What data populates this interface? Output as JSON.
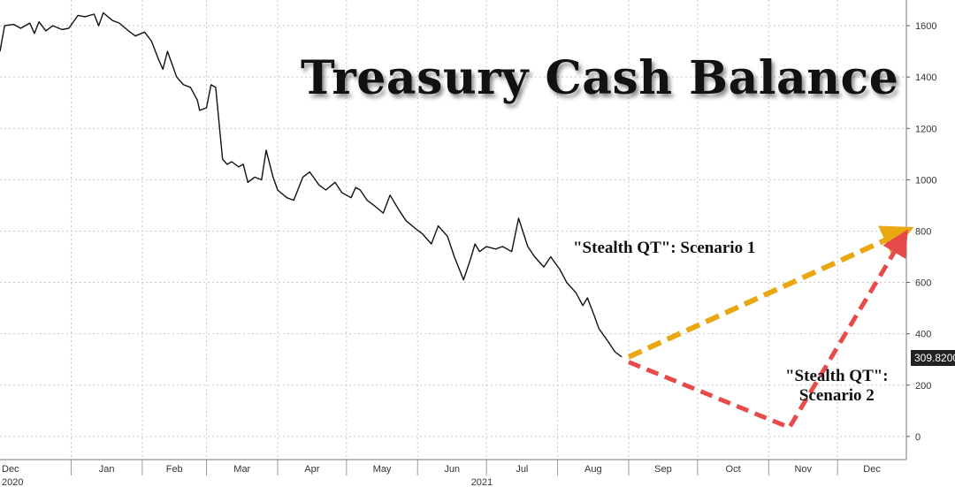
{
  "chart_data": {
    "type": "line",
    "title": "Treasury Cash Balance",
    "x_tick_labels": [
      "Dec",
      "Jan",
      "Feb",
      "Mar",
      "Apr",
      "May",
      "Jun",
      "Jul",
      "Aug",
      "Sep",
      "Oct",
      "Nov",
      "Dec"
    ],
    "year_labels": [
      "2020",
      "2021"
    ],
    "y_ticks": [
      0,
      200,
      400,
      600,
      800,
      1000,
      1200,
      1400,
      1600
    ],
    "ylim": [
      -90,
      1700
    ],
    "xlim": [
      "2020-12-01",
      "2021-12-31"
    ],
    "grid": true,
    "last_value_label": "309.8200",
    "series": [
      {
        "values": [
          [
            "2020-12-01",
            1500
          ],
          [
            "2020-12-03",
            1600
          ],
          [
            "2020-12-07",
            1605
          ],
          [
            "2020-12-10",
            1590
          ],
          [
            "2020-12-14",
            1610
          ],
          [
            "2020-12-16",
            1570
          ],
          [
            "2020-12-18",
            1615
          ],
          [
            "2020-12-21",
            1580
          ],
          [
            "2020-12-24",
            1600
          ],
          [
            "2020-12-28",
            1585
          ],
          [
            "2020-12-31",
            1590
          ],
          [
            "2021-01-04",
            1640
          ],
          [
            "2021-01-07",
            1635
          ],
          [
            "2021-01-11",
            1645
          ],
          [
            "2021-01-13",
            1600
          ],
          [
            "2021-01-15",
            1650
          ],
          [
            "2021-01-19",
            1620
          ],
          [
            "2021-01-22",
            1610
          ],
          [
            "2021-01-26",
            1580
          ],
          [
            "2021-01-29",
            1560
          ],
          [
            "2021-02-02",
            1575
          ],
          [
            "2021-02-05",
            1540
          ],
          [
            "2021-02-08",
            1470
          ],
          [
            "2021-02-10",
            1430
          ],
          [
            "2021-02-12",
            1500
          ],
          [
            "2021-02-16",
            1400
          ],
          [
            "2021-02-19",
            1370
          ],
          [
            "2021-02-22",
            1360
          ],
          [
            "2021-02-25",
            1310
          ],
          [
            "2021-02-26",
            1270
          ],
          [
            "2021-03-01",
            1280
          ],
          [
            "2021-03-03",
            1370
          ],
          [
            "2021-03-05",
            1360
          ],
          [
            "2021-03-08",
            1080
          ],
          [
            "2021-03-10",
            1060
          ],
          [
            "2021-03-12",
            1070
          ],
          [
            "2021-03-15",
            1050
          ],
          [
            "2021-03-17",
            1060
          ],
          [
            "2021-03-19",
            990
          ],
          [
            "2021-03-22",
            1010
          ],
          [
            "2021-03-25",
            1000
          ],
          [
            "2021-03-27",
            1115
          ],
          [
            "2021-03-30",
            1010
          ],
          [
            "2021-04-01",
            960
          ],
          [
            "2021-04-05",
            930
          ],
          [
            "2021-04-08",
            920
          ],
          [
            "2021-04-12",
            1010
          ],
          [
            "2021-04-15",
            1030
          ],
          [
            "2021-04-19",
            980
          ],
          [
            "2021-04-22",
            960
          ],
          [
            "2021-04-26",
            990
          ],
          [
            "2021-04-29",
            950
          ],
          [
            "2021-05-03",
            930
          ],
          [
            "2021-05-05",
            970
          ],
          [
            "2021-05-07",
            960
          ],
          [
            "2021-05-10",
            920
          ],
          [
            "2021-05-13",
            900
          ],
          [
            "2021-05-17",
            870
          ],
          [
            "2021-05-20",
            940
          ],
          [
            "2021-05-24",
            880
          ],
          [
            "2021-05-27",
            840
          ],
          [
            "2021-05-31",
            810
          ],
          [
            "2021-06-03",
            790
          ],
          [
            "2021-06-07",
            750
          ],
          [
            "2021-06-10",
            820
          ],
          [
            "2021-06-14",
            780
          ],
          [
            "2021-06-17",
            700
          ],
          [
            "2021-06-21",
            610
          ],
          [
            "2021-06-24",
            690
          ],
          [
            "2021-06-26",
            750
          ],
          [
            "2021-06-28",
            720
          ],
          [
            "2021-07-01",
            740
          ],
          [
            "2021-07-05",
            730
          ],
          [
            "2021-07-08",
            740
          ],
          [
            "2021-07-12",
            720
          ],
          [
            "2021-07-15",
            850
          ],
          [
            "2021-07-19",
            740
          ],
          [
            "2021-07-22",
            700
          ],
          [
            "2021-07-26",
            660
          ],
          [
            "2021-07-29",
            700
          ],
          [
            "2021-08-02",
            650
          ],
          [
            "2021-08-05",
            600
          ],
          [
            "2021-08-09",
            560
          ],
          [
            "2021-08-12",
            510
          ],
          [
            "2021-08-14",
            540
          ],
          [
            "2021-08-17",
            470
          ],
          [
            "2021-08-19",
            420
          ],
          [
            "2021-08-23",
            370
          ],
          [
            "2021-08-26",
            330
          ],
          [
            "2021-08-29",
            310
          ]
        ]
      }
    ],
    "annotations": [
      {
        "text": "\"Stealth QT\": Scenario 1",
        "arrow_color": "#e9a712",
        "from": [
          "2021-09-01",
          310
        ],
        "to": [
          "2021-12-31",
          800
        ]
      },
      {
        "text_line_1": "\"Stealth QT\":",
        "text_line_2": "Scenario 2",
        "arrow_color": "#e84a4a",
        "path": [
          [
            "2021-09-01",
            290
          ],
          [
            "2021-11-10",
            35
          ],
          [
            "2021-12-31",
            790
          ]
        ]
      }
    ]
  }
}
